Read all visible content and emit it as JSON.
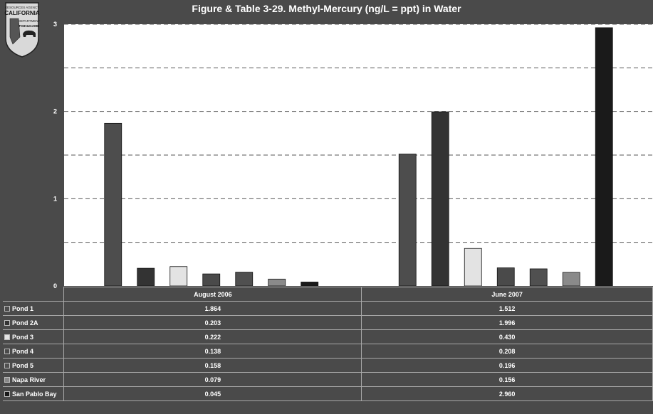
{
  "title": "Figure & Table 3-29.  Methyl-Mercury (ng/L = ppt) in Water",
  "logo": {
    "lines": [
      "RESOURCES AGENCY",
      "CALIFORNIA",
      "DEPARTMENT",
      "FISH&GAME"
    ]
  },
  "chart_data": {
    "type": "bar",
    "categories": [
      "August 2006",
      "June 2007"
    ],
    "ylim": [
      0,
      3
    ],
    "y_ticks": [
      "0",
      "1",
      "2",
      "3"
    ],
    "grid": true,
    "series": [
      {
        "name": "Pond 1",
        "values": [
          1.864,
          1.512
        ],
        "values_text": [
          "1.864",
          "1.512"
        ],
        "color": "#4d4d4d"
      },
      {
        "name": "Pond 2A",
        "values": [
          0.203,
          1.996
        ],
        "values_text": [
          "0.203",
          "1.996"
        ],
        "color": "#333333"
      },
      {
        "name": "Pond 3",
        "values": [
          0.222,
          0.43
        ],
        "values_text": [
          "0.222",
          "0.430"
        ],
        "color": "#e3e3e3"
      },
      {
        "name": "Pond 4",
        "values": [
          0.138,
          0.208
        ],
        "values_text": [
          "0.138",
          "0.208"
        ],
        "color": "#4a4a4a"
      },
      {
        "name": "Pond 5",
        "values": [
          0.158,
          0.196
        ],
        "values_text": [
          "0.158",
          "0.196"
        ],
        "color": "#505050"
      },
      {
        "name": "Napa River",
        "values": [
          0.079,
          0.156
        ],
        "values_text": [
          "0.079",
          "0.156"
        ],
        "color": "#8a8a8a"
      },
      {
        "name": "San Pablo Bay",
        "values": [
          0.045,
          2.96
        ],
        "values_text": [
          "0.045",
          "2.960"
        ],
        "color": "#1a1a1a"
      }
    ]
  }
}
